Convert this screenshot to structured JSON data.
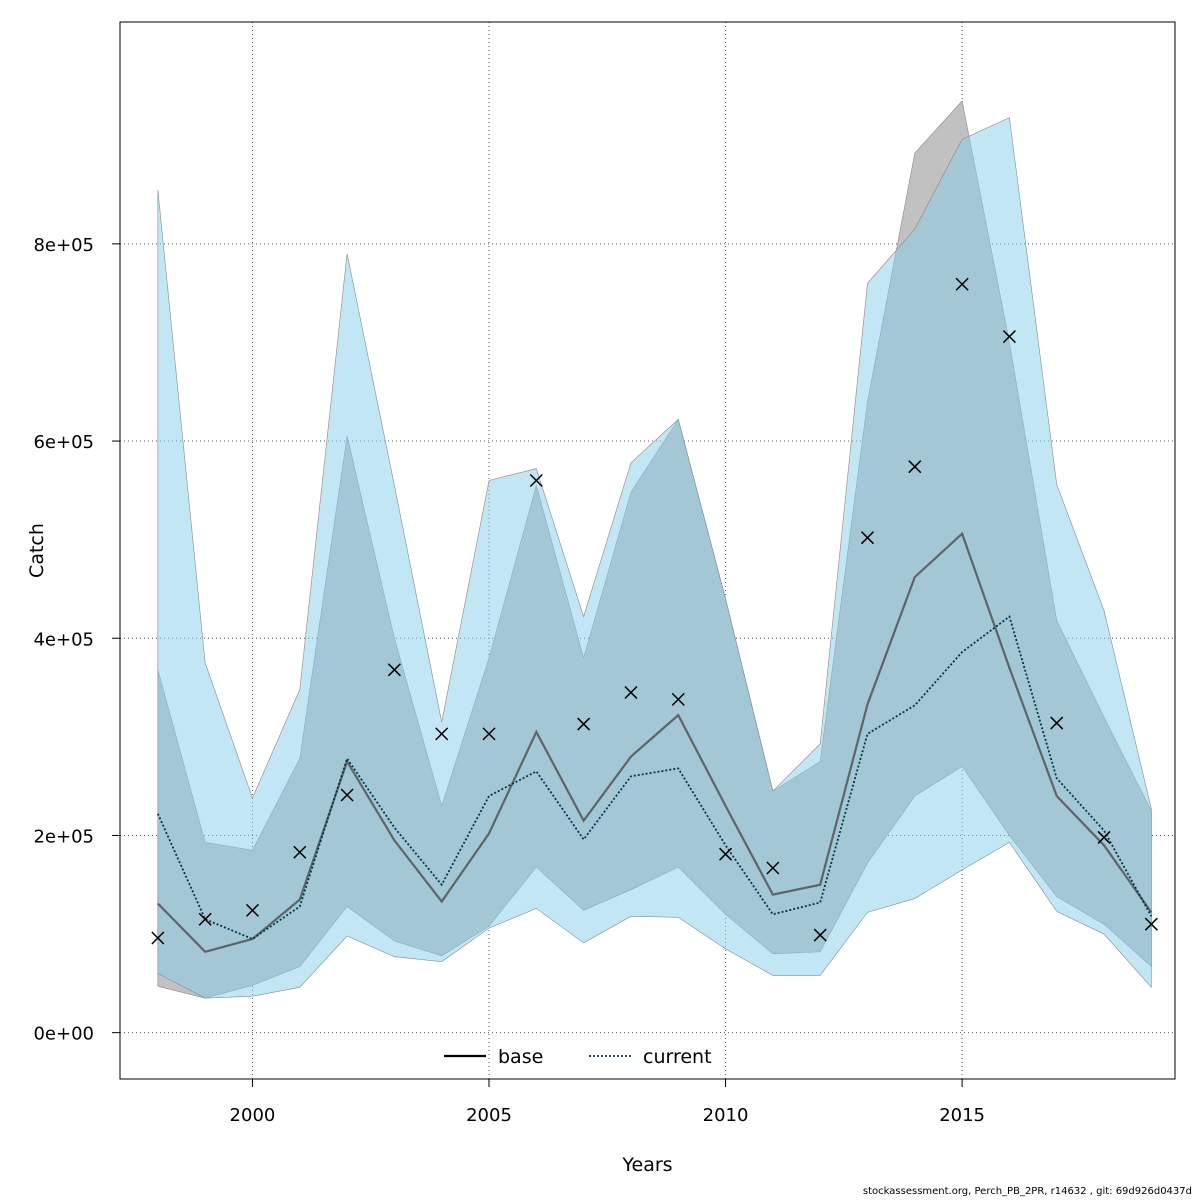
{
  "chart_data": {
    "type": "line",
    "xlabel": "Years",
    "ylabel": "Catch",
    "xlim": [
      1997.2,
      2019.5
    ],
    "ylim": [
      -47000,
      1025000
    ],
    "x_ticks": [
      2000,
      2005,
      2010,
      2015
    ],
    "x_tick_labels": [
      "2000",
      "2005",
      "2010",
      "2015"
    ],
    "y_ticks": [
      0,
      200000,
      400000,
      600000,
      800000
    ],
    "y_tick_labels": [
      "0e+00",
      "2e+05",
      "4e+05",
      "6e+05",
      "8e+05"
    ],
    "grid": true,
    "legend_placement": "bottom",
    "x": [
      1998,
      1999,
      2000,
      2001,
      2002,
      2003,
      2004,
      2005,
      2006,
      2007,
      2008,
      2009,
      2010,
      2011,
      2012,
      2013,
      2014,
      2015,
      2016,
      2017,
      2018,
      2019
    ],
    "series": [
      {
        "name": "base",
        "line_style": "solid",
        "color": "#000000",
        "values": [
          131000,
          82000,
          95000,
          135000,
          275000,
          195000,
          133000,
          202000,
          305000,
          215000,
          280000,
          322000,
          230000,
          140000,
          150000,
          333000,
          462000,
          506000,
          370000,
          240000,
          190000,
          122000
        ],
        "band_lower": [
          47000,
          35000,
          48000,
          67000,
          128000,
          93000,
          78000,
          108000,
          168000,
          124000,
          145000,
          168000,
          120000,
          80000,
          82000,
          172000,
          240000,
          270000,
          200000,
          138000,
          110000,
          67000
        ],
        "band_upper": [
          368000,
          193000,
          185000,
          278000,
          605000,
          400000,
          230000,
          380000,
          555000,
          380000,
          548000,
          622000,
          440000,
          245000,
          275000,
          640000,
          892000,
          945000,
          700000,
          418000,
          320000,
          225000
        ],
        "band_color": "#bebebe"
      },
      {
        "name": "current",
        "line_style": "dotted",
        "color": "#00364a",
        "values": [
          222000,
          115000,
          95000,
          128000,
          278000,
          208000,
          150000,
          240000,
          265000,
          196000,
          260000,
          268000,
          190000,
          120000,
          132000,
          303000,
          332000,
          386000,
          422000,
          258000,
          205000,
          118000
        ],
        "band_lower": [
          60000,
          35000,
          37000,
          46000,
          98000,
          77000,
          72000,
          106000,
          126000,
          91000,
          118000,
          117000,
          85000,
          58000,
          58000,
          122000,
          136000,
          165000,
          193000,
          123000,
          100000,
          46000
        ],
        "band_upper": [
          855000,
          375000,
          238000,
          348000,
          790000,
          555000,
          315000,
          560000,
          572000,
          422000,
          578000,
          622000,
          440000,
          245000,
          293000,
          760000,
          815000,
          906000,
          928000,
          556000,
          428000,
          227000
        ],
        "band_color": "#87ceeb"
      }
    ],
    "observed": {
      "marker": "x",
      "x": [
        1998,
        1999,
        2000,
        2001,
        2002,
        2003,
        2004,
        2005,
        2006,
        2007,
        2008,
        2009,
        2010,
        2011,
        2012,
        2013,
        2014,
        2015,
        2016,
        2017,
        2018,
        2019
      ],
      "values": [
        96000,
        115000,
        124000,
        183000,
        241000,
        368000,
        303000,
        303000,
        560000,
        313000,
        345000,
        338000,
        181000,
        167000,
        99000,
        502000,
        574000,
        759000,
        706000,
        314000,
        198000,
        110000
      ]
    }
  },
  "footer": {
    "text": "stockassessment.org, Perch_PB_2PR, r14632 , git: 69d926d0437d"
  }
}
